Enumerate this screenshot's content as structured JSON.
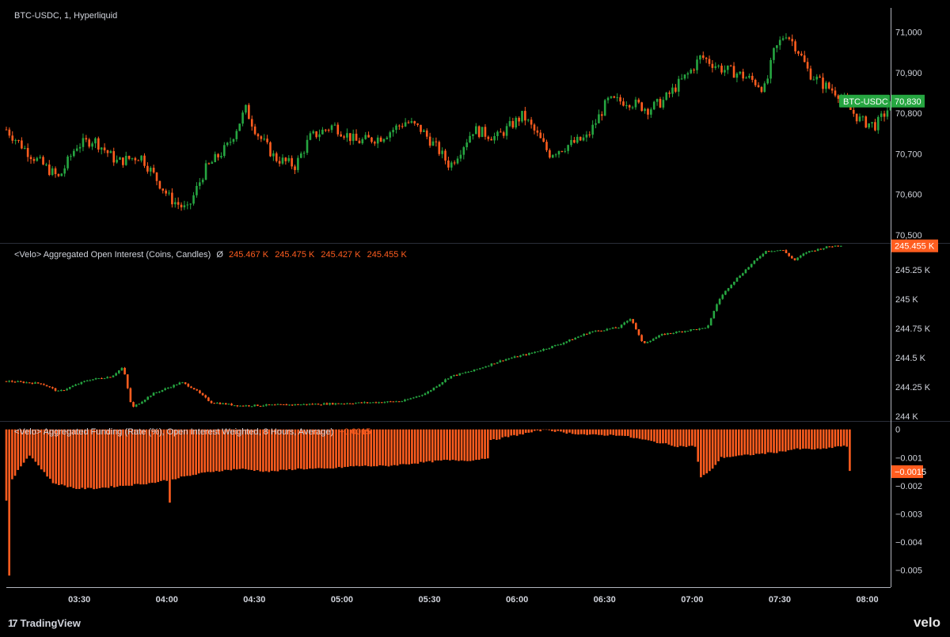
{
  "colors": {
    "up": "#26a641",
    "down": "#ff5d1f",
    "funding": "#ff5d1f",
    "grid_line": "#2a2e39",
    "axis_text": "#d1d4dc"
  },
  "panes": {
    "price": {
      "legend": "BTC-USDC, 1, Hyperliquid",
      "price_badge_label": "BTC-USDC",
      "price_badge_value": "70,830"
    },
    "open_interest": {
      "legend": "<Velo> Aggregated Open Interest (Coins, Candles)",
      "symbol": "Ø",
      "ohlc": [
        "245.467 K",
        "245.475 K",
        "245.427 K",
        "245.455 K"
      ],
      "badge_value": "245.455 K"
    },
    "funding": {
      "legend": "<Velo> Aggregated Funding (Rate (%), Open Interest Weighted, 8 Hours, Average)",
      "value": "−0.0015",
      "badge_value": "−0.0015"
    }
  },
  "chart_data": [
    {
      "type": "candlestick",
      "title": "BTC-USDC, 1, Hyperliquid",
      "interval": "1 minute",
      "ylim": [
        70480,
        71060
      ],
      "y_ticks": [
        "71,000",
        "70,900",
        "70,800",
        "70,700",
        "70,600",
        "70,500"
      ],
      "y_tick_values": [
        71000,
        70900,
        70800,
        70700,
        70600,
        70500
      ],
      "last_value": 70830,
      "path": [
        [
          0,
          70760
        ],
        [
          8,
          70700
        ],
        [
          18,
          70640
        ],
        [
          24,
          70720
        ],
        [
          30,
          70735
        ],
        [
          38,
          70680
        ],
        [
          46,
          70695
        ],
        [
          56,
          70590
        ],
        [
          62,
          70560
        ],
        [
          68,
          70660
        ],
        [
          76,
          70720
        ],
        [
          82,
          70810
        ],
        [
          86,
          70750
        ],
        [
          92,
          70690
        ],
        [
          99,
          70670
        ],
        [
          104,
          70740
        ],
        [
          112,
          70770
        ],
        [
          120,
          70730
        ],
        [
          128,
          70740
        ],
        [
          137,
          70780
        ],
        [
          142,
          70760
        ],
        [
          148,
          70710
        ],
        [
          152,
          70670
        ],
        [
          160,
          70760
        ],
        [
          168,
          70740
        ],
        [
          177,
          70795
        ],
        [
          182,
          70745
        ],
        [
          186,
          70700
        ],
        [
          192,
          70720
        ],
        [
          199,
          70740
        ],
        [
          206,
          70830
        ],
        [
          213,
          70830
        ],
        [
          220,
          70810
        ],
        [
          225,
          70830
        ],
        [
          230,
          70870
        ],
        [
          234,
          70900
        ],
        [
          238,
          70940
        ],
        [
          245,
          70910
        ],
        [
          250,
          70900
        ],
        [
          256,
          70880
        ],
        [
          260,
          70860
        ],
        [
          263,
          70950
        ],
        [
          267,
          71000
        ],
        [
          271,
          70960
        ],
        [
          275,
          70900
        ],
        [
          280,
          70870
        ],
        [
          285,
          70850
        ],
        [
          289,
          70810
        ],
        [
          293,
          70780
        ],
        [
          298,
          70770
        ],
        [
          301,
          70800
        ],
        [
          304,
          70830
        ]
      ],
      "x_start": "03:05",
      "x_end": "07:48"
    },
    {
      "type": "candlestick",
      "title": "<Velo> Aggregated Open Interest (Coins, Candles)",
      "ylim": [
        243960,
        245480
      ],
      "y_ticks": [
        "245.25 K",
        "245 K",
        "244.75 K",
        "244.5 K",
        "244.25 K",
        "244 K"
      ],
      "y_tick_values": [
        245250,
        245000,
        244750,
        244500,
        244250,
        244000
      ],
      "last_value": 245455,
      "ohlc_last": {
        "open": "245.467 K",
        "high": "245.475 K",
        "low": "245.427 K",
        "close": "245.455 K"
      },
      "path": [
        [
          0,
          244300
        ],
        [
          12,
          244280
        ],
        [
          18,
          244210
        ],
        [
          28,
          244310
        ],
        [
          36,
          244340
        ],
        [
          40,
          244420
        ],
        [
          43,
          244070
        ],
        [
          50,
          244190
        ],
        [
          60,
          244290
        ],
        [
          64,
          244240
        ],
        [
          70,
          244120
        ],
        [
          80,
          244090
        ],
        [
          100,
          244100
        ],
        [
          115,
          244110
        ],
        [
          128,
          244120
        ],
        [
          136,
          244130
        ],
        [
          144,
          244200
        ],
        [
          152,
          244340
        ],
        [
          160,
          244390
        ],
        [
          170,
          244480
        ],
        [
          180,
          244540
        ],
        [
          190,
          244620
        ],
        [
          200,
          244720
        ],
        [
          210,
          244760
        ],
        [
          214,
          244840
        ],
        [
          218,
          244620
        ],
        [
          225,
          244700
        ],
        [
          235,
          244740
        ],
        [
          240,
          244750
        ],
        [
          244,
          244990
        ],
        [
          248,
          245120
        ],
        [
          252,
          245220
        ],
        [
          260,
          245410
        ],
        [
          266,
          245420
        ],
        [
          270,
          245330
        ],
        [
          274,
          245400
        ],
        [
          282,
          245450
        ],
        [
          286,
          245460
        ]
      ],
      "x_start": "03:05",
      "x_end": "07:48"
    },
    {
      "type": "bar",
      "title": "<Velo> Aggregated Funding (Rate (%), Open Interest Weighted, 8 Hours, Average)",
      "ylim": [
        -0.0056,
        0.0003
      ],
      "y_ticks": [
        "0",
        "−0.001",
        "−0.002",
        "−0.003",
        "−0.004",
        "−0.005"
      ],
      "y_tick_values": [
        0,
        -0.001,
        -0.002,
        -0.003,
        -0.004,
        -0.005
      ],
      "last_value": -0.0015,
      "path": [
        [
          0,
          -0.0025
        ],
        [
          1,
          -0.0052
        ],
        [
          2,
          -0.0018
        ],
        [
          5,
          -0.0013
        ],
        [
          8,
          -0.0009
        ],
        [
          12,
          -0.0014
        ],
        [
          16,
          -0.0019
        ],
        [
          20,
          -0.002
        ],
        [
          24,
          -0.0021
        ],
        [
          30,
          -0.0021
        ],
        [
          40,
          -0.002
        ],
        [
          50,
          -0.0019
        ],
        [
          60,
          -0.0017
        ],
        [
          70,
          -0.0015
        ],
        [
          80,
          -0.0014
        ],
        [
          90,
          -0.0015
        ],
        [
          100,
          -0.0014
        ],
        [
          110,
          -0.0014
        ],
        [
          120,
          -0.0013
        ],
        [
          130,
          -0.0013
        ],
        [
          140,
          -0.0012
        ],
        [
          150,
          -0.0011
        ],
        [
          160,
          -0.0011
        ],
        [
          165,
          -0.001
        ],
        [
          166,
          -0.0004
        ],
        [
          170,
          -0.0003
        ],
        [
          180,
          -0.0001
        ],
        [
          185,
          0.0
        ],
        [
          190,
          -0.0001
        ],
        [
          200,
          -0.0002
        ],
        [
          210,
          -0.0002
        ],
        [
          220,
          -0.0004
        ],
        [
          230,
          -0.0006
        ],
        [
          236,
          -0.0006
        ],
        [
          238,
          -0.0017
        ],
        [
          241,
          -0.0015
        ],
        [
          245,
          -0.001
        ],
        [
          255,
          -0.0009
        ],
        [
          265,
          -0.0008
        ],
        [
          270,
          -0.0007
        ],
        [
          280,
          -0.0007
        ],
        [
          285,
          -0.0006
        ],
        [
          288,
          -0.0006
        ],
        [
          289,
          -0.0015
        ]
      ],
      "spikes": [
        [
          56,
          -0.0026
        ]
      ],
      "x_start": "03:05",
      "x_end": "07:48"
    }
  ],
  "time_axis": {
    "ticks": [
      "03:30",
      "04:00",
      "04:30",
      "05:00",
      "05:30",
      "06:00",
      "06:30",
      "07:00",
      "07:30",
      "08:00"
    ],
    "tick_minutes": [
      25,
      55,
      85,
      115,
      145,
      175,
      205,
      235,
      265,
      295
    ],
    "range_minutes": [
      0,
      303
    ]
  },
  "branding": {
    "left": "TradingView",
    "right": "velo"
  }
}
